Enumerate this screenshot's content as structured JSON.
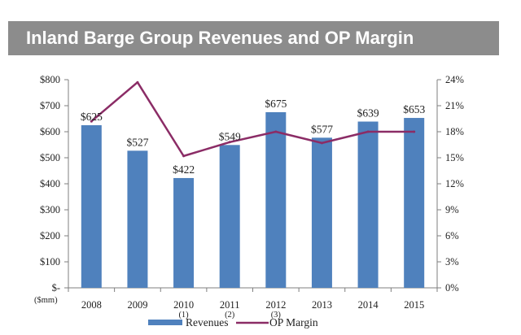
{
  "chart_data": {
    "type": "bar",
    "title": "Inland Barge Group Revenues and OP Margin",
    "categories": [
      "2008",
      "2009",
      "2010",
      "2011",
      "2012",
      "2013",
      "2014",
      "2015"
    ],
    "category_notes": [
      "",
      "",
      "(1)",
      "(2)",
      "(3)",
      "",
      "",
      ""
    ],
    "y_unit_label": "($mm)",
    "series": [
      {
        "name": "Revenues",
        "type": "bar",
        "axis": "left",
        "color": "#4f81bd",
        "values": [
          625,
          527,
          422,
          549,
          675,
          577,
          639,
          653
        ],
        "labels": [
          "$625",
          "$527",
          "$422",
          "$549",
          "$675",
          "$577",
          "$639",
          "$653"
        ]
      },
      {
        "name": "OP Margin",
        "type": "line",
        "axis": "right",
        "color": "#8b2c66",
        "values": [
          19.2,
          23.7,
          15.2,
          16.8,
          18.0,
          16.7,
          18.0,
          18.0
        ]
      }
    ],
    "y_left": {
      "min": 0,
      "max": 800,
      "ticks": [
        0,
        100,
        200,
        300,
        400,
        500,
        600,
        700,
        800
      ],
      "tick_labels": [
        "$-",
        "$100",
        "$200",
        "$300",
        "$400",
        "$500",
        "$600",
        "$700",
        "$800"
      ]
    },
    "y_right": {
      "min": 0,
      "max": 24,
      "ticks": [
        0,
        3,
        6,
        9,
        12,
        15,
        18,
        21,
        24
      ],
      "tick_labels": [
        "0%",
        "3%",
        "6%",
        "9%",
        "12%",
        "15%",
        "18%",
        "21%",
        "24%"
      ]
    },
    "grid": false,
    "legend": {
      "position": "bottom",
      "entries": [
        "Revenues",
        "OP Margin"
      ]
    }
  }
}
